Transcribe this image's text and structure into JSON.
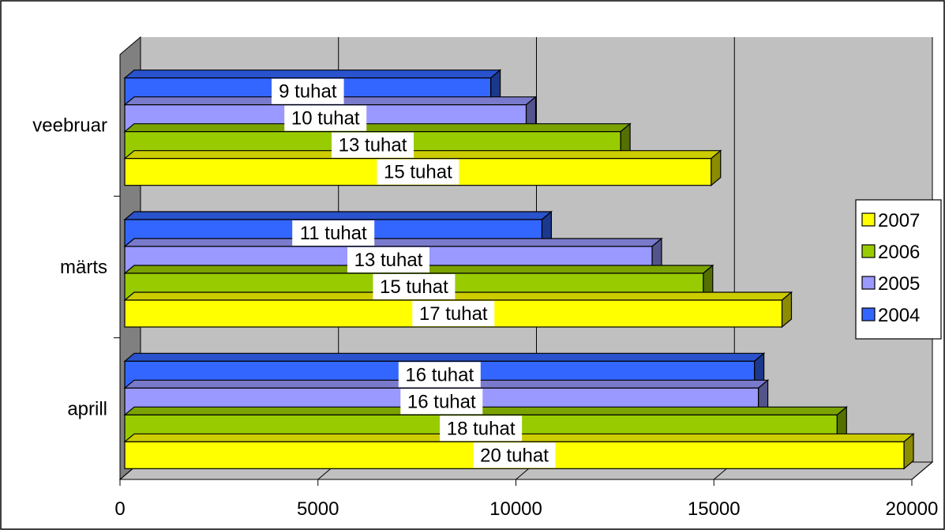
{
  "chart_data": {
    "type": "bar",
    "orientation": "horizontal",
    "style": "3d",
    "categories": [
      "veebruar",
      "märts",
      "aprill"
    ],
    "series": [
      {
        "name": "2004",
        "color": "#3366ff",
        "values": [
          9300,
          10600,
          16000
        ],
        "labels": [
          "9 tuhat",
          "11 tuhat",
          "16 tuhat"
        ]
      },
      {
        "name": "2005",
        "color": "#9999ff",
        "values": [
          10200,
          13400,
          16100
        ],
        "labels": [
          "10 tuhat",
          "13 tuhat",
          "16 tuhat"
        ]
      },
      {
        "name": "2006",
        "color": "#99cc00",
        "values": [
          12600,
          14700,
          18100
        ],
        "labels": [
          "13 tuhat",
          "15 tuhat",
          "18 tuhat"
        ]
      },
      {
        "name": "2007",
        "color": "#ffff00",
        "values": [
          14900,
          16700,
          19800
        ],
        "labels": [
          "15 tuhat",
          "17 tuhat",
          "20 tuhat"
        ]
      }
    ],
    "xlim": [
      0,
      20000
    ],
    "x_ticks": [
      "0",
      "5000",
      "10000",
      "15000",
      "20000"
    ],
    "legend": {
      "position": "right",
      "order": [
        "2007",
        "2006",
        "2005",
        "2004"
      ]
    },
    "grid": true,
    "plot_background": "#c0c0c0",
    "wall_color": "#808080"
  }
}
